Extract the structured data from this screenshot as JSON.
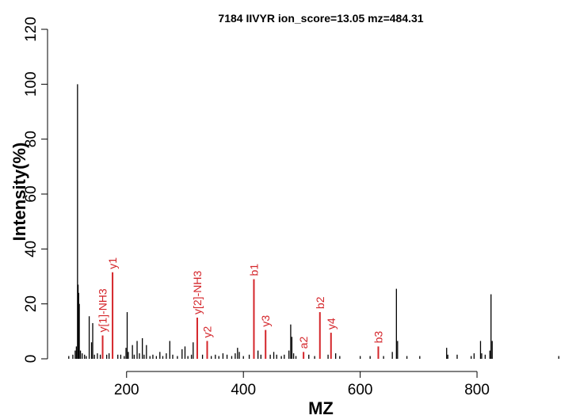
{
  "chart_data": {
    "type": "bar",
    "title": "7184 IIVYR ion_score=13.05 mz=484.31",
    "xlabel": "MZ",
    "ylabel": "Intensity(%)",
    "xlim": [
      85,
      960
    ],
    "ylim": [
      0,
      120
    ],
    "x_ticks": [
      200,
      400,
      600,
      800
    ],
    "x_tick_labels": [
      "200",
      "400",
      "600",
      "800"
    ],
    "y_ticks": [
      0,
      20,
      40,
      60,
      80,
      100,
      120
    ],
    "y_tick_labels": [
      "0",
      "20",
      "40",
      "60",
      "80",
      "100",
      "120"
    ],
    "colors": {
      "peaks": "#000000",
      "annotated": "#d4252a",
      "axis": "#000000"
    },
    "series": [
      {
        "name": "",
        "points": [
          {
            "x": 101,
            "y": 1.0
          },
          {
            "x": 108,
            "y": 1.5
          },
          {
            "x": 112,
            "y": 3.0
          },
          {
            "x": 114,
            "y": 4.5
          },
          {
            "x": 116,
            "y": 100.0
          },
          {
            "x": 117,
            "y": 27.0
          },
          {
            "x": 118,
            "y": 24.0
          },
          {
            "x": 119,
            "y": 20.0
          },
          {
            "x": 121,
            "y": 3.0
          },
          {
            "x": 124,
            "y": 2.0
          },
          {
            "x": 128,
            "y": 1.5
          },
          {
            "x": 131,
            "y": 1.0
          },
          {
            "x": 136,
            "y": 15.5
          },
          {
            "x": 140,
            "y": 6.0
          },
          {
            "x": 142,
            "y": 13.0
          },
          {
            "x": 145,
            "y": 1.5
          },
          {
            "x": 150,
            "y": 2.0
          },
          {
            "x": 155,
            "y": 1.5
          },
          {
            "x": 166,
            "y": 1.5
          },
          {
            "x": 170,
            "y": 2.0
          },
          {
            "x": 185,
            "y": 1.5
          },
          {
            "x": 190,
            "y": 1.5
          },
          {
            "x": 196,
            "y": 1.0
          },
          {
            "x": 199,
            "y": 4.0
          },
          {
            "x": 201,
            "y": 17.0
          },
          {
            "x": 203,
            "y": 2.5
          },
          {
            "x": 210,
            "y": 5.0
          },
          {
            "x": 213,
            "y": 1.5
          },
          {
            "x": 218,
            "y": 6.5
          },
          {
            "x": 222,
            "y": 2.0
          },
          {
            "x": 227,
            "y": 7.5
          },
          {
            "x": 230,
            "y": 1.5
          },
          {
            "x": 234,
            "y": 5.0
          },
          {
            "x": 240,
            "y": 1.0
          },
          {
            "x": 245,
            "y": 1.5
          },
          {
            "x": 251,
            "y": 1.0
          },
          {
            "x": 257,
            "y": 2.5
          },
          {
            "x": 262,
            "y": 1.0
          },
          {
            "x": 268,
            "y": 2.0
          },
          {
            "x": 274,
            "y": 6.5
          },
          {
            "x": 279,
            "y": 1.5
          },
          {
            "x": 287,
            "y": 1.0
          },
          {
            "x": 295,
            "y": 3.5
          },
          {
            "x": 300,
            "y": 4.5
          },
          {
            "x": 305,
            "y": 1.0
          },
          {
            "x": 311,
            "y": 1.5
          },
          {
            "x": 314,
            "y": 6.0
          },
          {
            "x": 330,
            "y": 1.5
          },
          {
            "x": 345,
            "y": 1.0
          },
          {
            "x": 352,
            "y": 1.5
          },
          {
            "x": 358,
            "y": 1.0
          },
          {
            "x": 365,
            "y": 2.0
          },
          {
            "x": 372,
            "y": 1.5
          },
          {
            "x": 380,
            "y": 1.0
          },
          {
            "x": 386,
            "y": 2.0
          },
          {
            "x": 390,
            "y": 4.0
          },
          {
            "x": 393,
            "y": 2.5
          },
          {
            "x": 400,
            "y": 1.0
          },
          {
            "x": 410,
            "y": 1.5
          },
          {
            "x": 425,
            "y": 3.0
          },
          {
            "x": 430,
            "y": 1.5
          },
          {
            "x": 446,
            "y": 1.5
          },
          {
            "x": 452,
            "y": 2.5
          },
          {
            "x": 457,
            "y": 1.5
          },
          {
            "x": 465,
            "y": 1.0
          },
          {
            "x": 470,
            "y": 1.5
          },
          {
            "x": 478,
            "y": 3.0
          },
          {
            "x": 481,
            "y": 12.5
          },
          {
            "x": 483,
            "y": 8.0
          },
          {
            "x": 486,
            "y": 2.0
          },
          {
            "x": 490,
            "y": 1.0
          },
          {
            "x": 512,
            "y": 1.5
          },
          {
            "x": 522,
            "y": 1.0
          },
          {
            "x": 545,
            "y": 1.5
          },
          {
            "x": 558,
            "y": 2.0
          },
          {
            "x": 565,
            "y": 1.0
          },
          {
            "x": 600,
            "y": 1.0
          },
          {
            "x": 617,
            "y": 1.0
          },
          {
            "x": 640,
            "y": 1.0
          },
          {
            "x": 655,
            "y": 2.5
          },
          {
            "x": 662,
            "y": 25.5
          },
          {
            "x": 664,
            "y": 6.5
          },
          {
            "x": 680,
            "y": 1.0
          },
          {
            "x": 702,
            "y": 1.0
          },
          {
            "x": 748,
            "y": 4.0
          },
          {
            "x": 750,
            "y": 1.5
          },
          {
            "x": 766,
            "y": 1.5
          },
          {
            "x": 790,
            "y": 1.0
          },
          {
            "x": 795,
            "y": 2.0
          },
          {
            "x": 806,
            "y": 6.5
          },
          {
            "x": 808,
            "y": 2.0
          },
          {
            "x": 814,
            "y": 1.5
          },
          {
            "x": 822,
            "y": 3.0
          },
          {
            "x": 824,
            "y": 23.5
          },
          {
            "x": 826,
            "y": 6.5
          },
          {
            "x": 940,
            "y": 1.0
          }
        ]
      }
    ],
    "annotations": [
      {
        "label": "y[1]-NH3",
        "x": 159,
        "y": 8.5
      },
      {
        "label": "y1",
        "x": 176,
        "y": 31.5
      },
      {
        "label": "y[2]-NH3",
        "x": 321,
        "y": 15.0
      },
      {
        "label": "y2",
        "x": 338,
        "y": 6.5
      },
      {
        "label": "b1",
        "x": 418,
        "y": 29.0
      },
      {
        "label": "y3",
        "x": 438,
        "y": 10.5
      },
      {
        "label": "a2",
        "x": 503,
        "y": 2.5
      },
      {
        "label": "b2",
        "x": 531,
        "y": 17.0
      },
      {
        "label": "y4",
        "x": 550,
        "y": 9.5
      },
      {
        "label": "b3",
        "x": 631,
        "y": 4.5
      }
    ]
  }
}
